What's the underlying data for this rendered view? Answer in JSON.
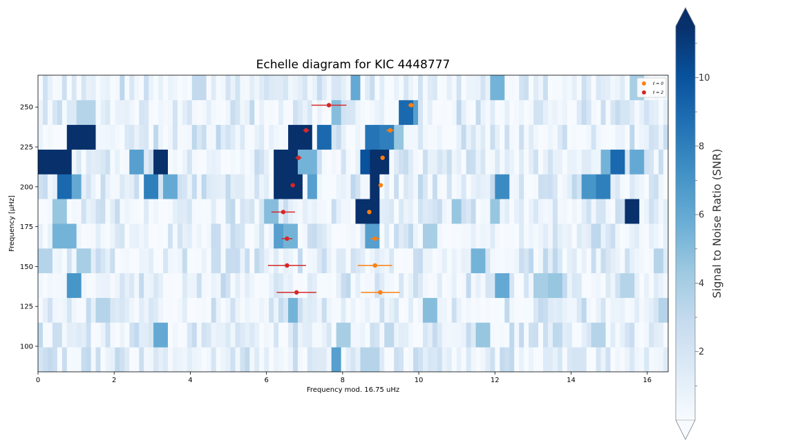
{
  "chart_data": {
    "type": "heatmap",
    "title": "Echelle diagram for KIC 4448777",
    "xlabel": "Frequency mod. 16.75 uHz",
    "ylabel": "Frequency [µHz]",
    "xlim": [
      0,
      16.55
    ],
    "ylim": [
      84,
      270
    ],
    "x_ticks": [
      0,
      2,
      4,
      6,
      8,
      10,
      12,
      14,
      16
    ],
    "y_ticks": [
      100,
      125,
      150,
      175,
      200,
      225,
      250
    ],
    "colormap": "Blues",
    "colors": {
      "low": "#f7fbff",
      "high": "#08306b"
    },
    "colorbar": {
      "label": "Signal to Noise Ratio (SNR)",
      "range": [
        0,
        11.5
      ],
      "ticks": [
        2,
        4,
        6,
        8,
        10
      ],
      "extend": "both"
    },
    "rows": [
      {
        "y_low": 84.0,
        "y_high": 99.5,
        "hot": [
          [
            7.85,
            0.1,
            6.5
          ],
          [
            8.7,
            0.15,
            3.5
          ],
          [
            0.3,
            0.1,
            2.5
          ],
          [
            14.2,
            0.1,
            2.0
          ]
        ]
      },
      {
        "y_low": 99.5,
        "y_high": 115.0,
        "hot": [
          [
            3.25,
            0.12,
            6.0
          ],
          [
            8.0,
            0.12,
            4.0
          ],
          [
            11.7,
            0.1,
            4.5
          ],
          [
            14.7,
            0.1,
            3.5
          ],
          [
            0.5,
            0.1,
            2.5
          ]
        ]
      },
      {
        "y_low": 115.0,
        "y_high": 130.5,
        "hot": [
          [
            6.7,
            0.12,
            5.5
          ],
          [
            10.3,
            0.1,
            5.0
          ],
          [
            1.7,
            0.1,
            3.5
          ],
          [
            16.45,
            0.1,
            3.5
          ]
        ]
      },
      {
        "y_low": 130.5,
        "y_high": 146.0,
        "hot": [
          [
            0.95,
            0.12,
            7.0
          ],
          [
            12.2,
            0.1,
            6.0
          ],
          [
            13.2,
            0.1,
            4.0
          ],
          [
            13.6,
            0.12,
            4.5
          ],
          [
            15.5,
            0.1,
            3.5
          ]
        ]
      },
      {
        "y_low": 146.0,
        "y_high": 161.5,
        "hot": [
          [
            11.55,
            0.12,
            5.5
          ],
          [
            1.2,
            0.1,
            4.0
          ],
          [
            0.2,
            0.1,
            3.5
          ],
          [
            16.3,
            0.1,
            3.5
          ]
        ]
      },
      {
        "y_low": 161.5,
        "y_high": 177.0,
        "hot": [
          [
            0.75,
            0.25,
            5.5
          ],
          [
            6.3,
            0.1,
            6.5
          ],
          [
            6.6,
            0.12,
            5.5
          ],
          [
            8.8,
            0.12,
            6.5
          ],
          [
            10.3,
            0.1,
            4.0
          ]
        ]
      },
      {
        "y_low": 177.0,
        "y_high": 192.5,
        "hot": [
          [
            8.6,
            0.25,
            12.0
          ],
          [
            15.6,
            0.12,
            12.0
          ],
          [
            6.1,
            0.1,
            5.0
          ],
          [
            0.55,
            0.1,
            4.5
          ],
          [
            11.0,
            0.1,
            4.5
          ],
          [
            12.0,
            0.1,
            4.5
          ]
        ]
      },
      {
        "y_low": 192.5,
        "y_high": 208.0,
        "hot": [
          [
            6.4,
            0.12,
            12.0
          ],
          [
            6.75,
            0.15,
            12.0
          ],
          [
            8.85,
            0.1,
            12.0
          ],
          [
            0.7,
            0.1,
            9.0
          ],
          [
            3.0,
            0.1,
            8.0
          ],
          [
            12.2,
            0.15,
            7.5
          ],
          [
            14.9,
            0.12,
            8.0
          ],
          [
            14.5,
            0.1,
            7.0
          ],
          [
            7.2,
            0.1,
            6.5
          ],
          [
            3.5,
            0.1,
            6.0
          ],
          [
            0.95,
            0.12,
            6.0
          ]
        ]
      },
      {
        "y_low": 208.0,
        "y_high": 223.5,
        "hot": [
          [
            0.45,
            0.4,
            12.0
          ],
          [
            6.55,
            0.25,
            12.0
          ],
          [
            8.95,
            0.22,
            12.0
          ],
          [
            3.25,
            0.1,
            12.0
          ],
          [
            8.65,
            0.1,
            10.0
          ],
          [
            15.25,
            0.1,
            9.0
          ],
          [
            2.6,
            0.1,
            6.5
          ],
          [
            15.7,
            0.1,
            6.0
          ],
          [
            7.0,
            0.25,
            5.5
          ],
          [
            15.0,
            0.1,
            5.5
          ],
          [
            0.7,
            0.1,
            5.0
          ]
        ]
      },
      {
        "y_low": 223.5,
        "y_high": 239.0,
        "hot": [
          [
            1.15,
            0.35,
            12.0
          ],
          [
            6.9,
            0.22,
            12.0
          ],
          [
            7.55,
            0.1,
            9.0
          ],
          [
            9.05,
            0.22,
            8.0
          ],
          [
            9.4,
            0.1,
            4.5
          ],
          [
            8.8,
            0.1,
            8.5
          ]
        ]
      },
      {
        "y_low": 239.0,
        "y_high": 254.5,
        "hot": [
          [
            9.7,
            0.1,
            9.0
          ],
          [
            9.85,
            0.12,
            6.5
          ],
          [
            7.85,
            0.1,
            5.0
          ],
          [
            1.25,
            0.15,
            3.5
          ]
        ]
      },
      {
        "y_low": 254.5,
        "y_high": 270.0,
        "hot": [
          [
            8.35,
            0.1,
            6.0
          ],
          [
            12.05,
            0.1,
            5.5
          ],
          [
            15.7,
            0.1,
            4.0
          ],
          [
            4.2,
            0.1,
            3.0
          ]
        ]
      }
    ],
    "series": [
      {
        "name": "ℓ=0",
        "label": "ℓ = 0",
        "color": "#ff7f0e",
        "points": [
          {
            "x": 9.8,
            "y": 251.2,
            "xerr": 0.08
          },
          {
            "x": 9.25,
            "y": 235.4,
            "xerr": 0.1
          },
          {
            "x": 9.05,
            "y": 218.2,
            "xerr": 0.0
          },
          {
            "x": 9.0,
            "y": 201.0,
            "xerr": 0.0
          },
          {
            "x": 8.7,
            "y": 184.2,
            "xerr": 0.0
          },
          {
            "x": 8.85,
            "y": 167.5,
            "xerr": 0.12
          },
          {
            "x": 8.85,
            "y": 150.7,
            "xerr": 0.45
          },
          {
            "x": 8.99,
            "y": 133.8,
            "xerr": 0.51
          }
        ]
      },
      {
        "name": "ℓ=2",
        "label": "ℓ = 2",
        "color": "#d62728",
        "points": [
          {
            "x": 7.64,
            "y": 251.2,
            "xerr": 0.46
          },
          {
            "x": 7.04,
            "y": 235.4,
            "xerr": 0.08
          },
          {
            "x": 6.84,
            "y": 218.2,
            "xerr": 0.08
          },
          {
            "x": 6.69,
            "y": 201.0,
            "xerr": 0.06
          },
          {
            "x": 6.44,
            "y": 184.2,
            "xerr": 0.31
          },
          {
            "x": 6.54,
            "y": 167.5,
            "xerr": 0.14
          },
          {
            "x": 6.54,
            "y": 150.7,
            "xerr": 0.5
          },
          {
            "x": 6.79,
            "y": 133.8,
            "xerr": 0.52
          }
        ]
      }
    ]
  }
}
